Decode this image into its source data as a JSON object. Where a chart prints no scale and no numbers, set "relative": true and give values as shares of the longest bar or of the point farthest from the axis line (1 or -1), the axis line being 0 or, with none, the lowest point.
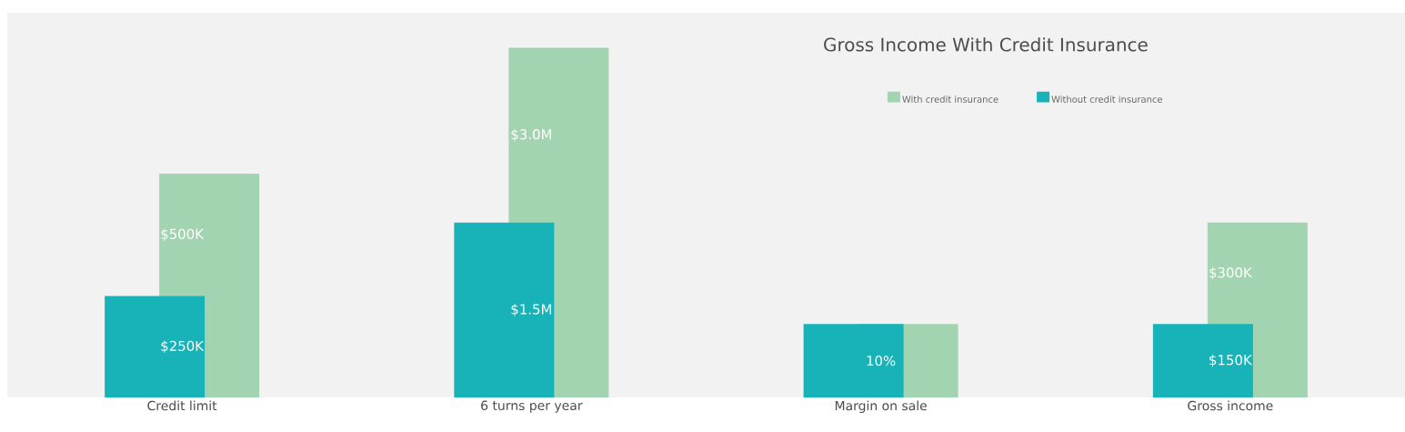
{
  "chart_data": {
    "type": "bar",
    "title": "Gross Income With Credit Insurance",
    "relative": true,
    "legend": "top right",
    "categories": [
      "Credit limit",
      "6 turns per year",
      "Margin on sale",
      "Gross income"
    ],
    "series": [
      {
        "name": "With credit insurance",
        "color": "#a3d4b1",
        "values": [
          0.64,
          1.0,
          0.21,
          0.5
        ]
      },
      {
        "name": "Without credit insurance",
        "color": "#18b3b8",
        "values": [
          0.29,
          0.5,
          0.21,
          0.21
        ]
      }
    ],
    "annotations": [
      "$500K",
      "$250K",
      "$3.0M",
      "$1.5M",
      "10%",
      "$300K",
      "$150K"
    ]
  }
}
